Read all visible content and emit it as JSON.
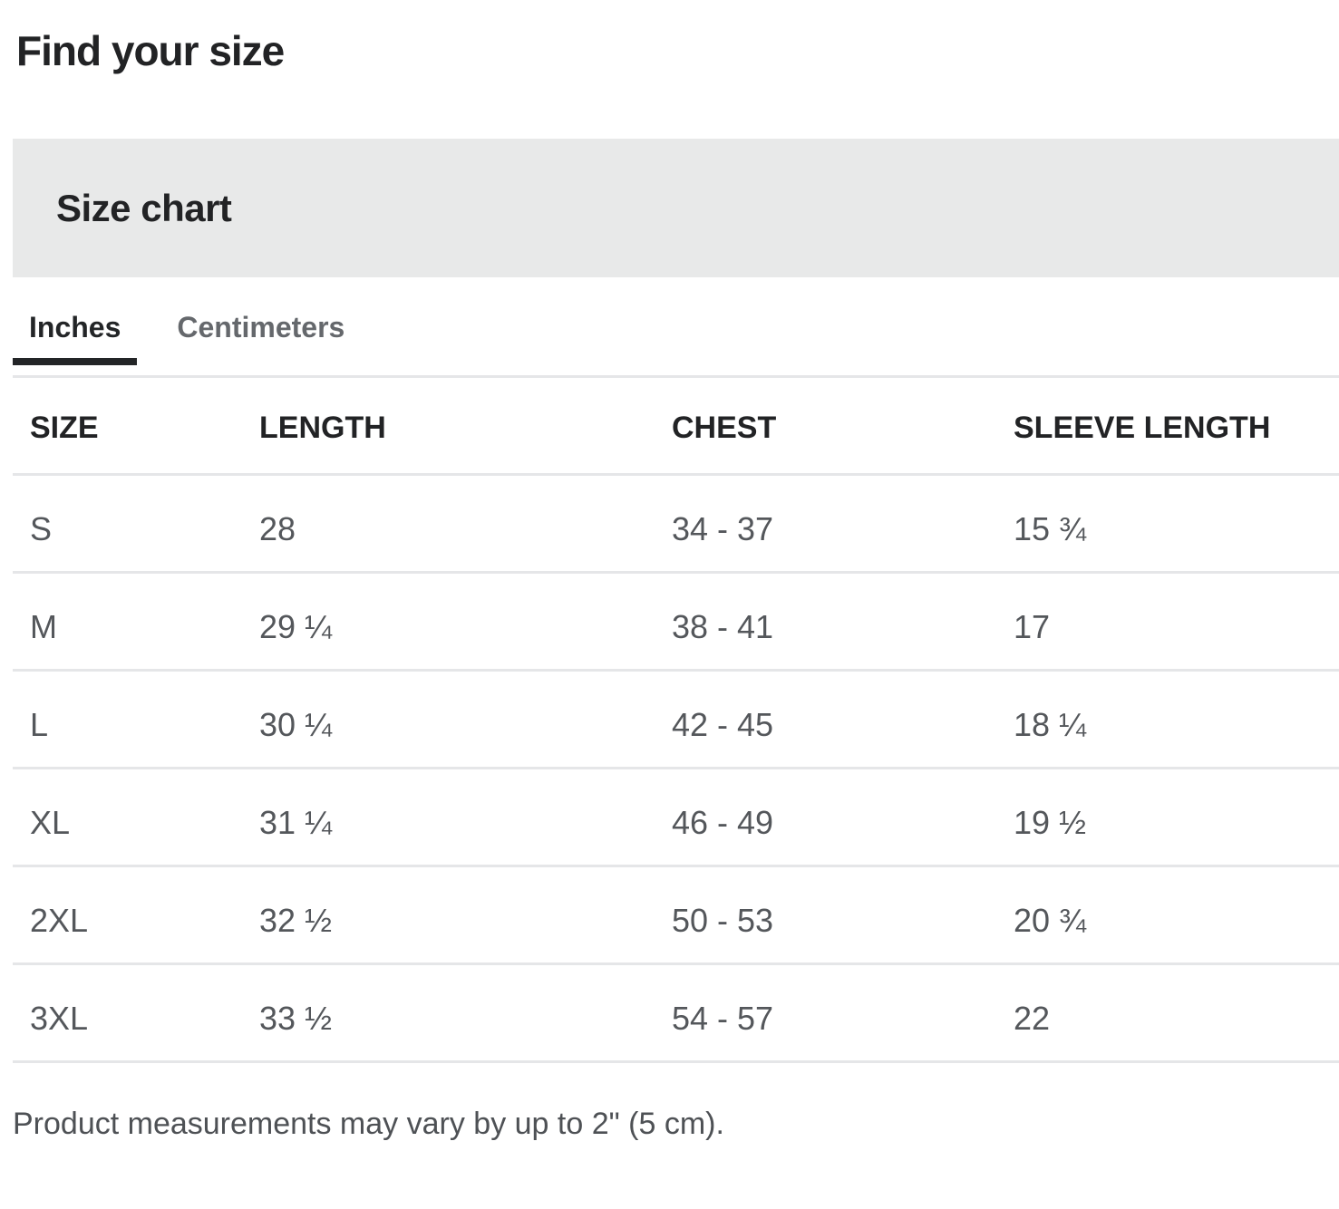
{
  "page": {
    "title": "Find your size",
    "section_title": "Size chart",
    "note": "Product measurements may vary by up to 2\" (5 cm)."
  },
  "tabs": [
    {
      "label": "Inches",
      "active": true
    },
    {
      "label": "Centimeters",
      "active": false
    }
  ],
  "table": {
    "columns": [
      "SIZE",
      "LENGTH",
      "CHEST",
      "SLEEVE LENGTH"
    ],
    "rows": [
      [
        "S",
        "28",
        "34 - 37",
        "15 ¾"
      ],
      [
        "M",
        "29 ¼",
        "38 - 41",
        "17"
      ],
      [
        "L",
        "30 ¼",
        "42 - 45",
        "18 ¼"
      ],
      [
        "XL",
        "31 ¼",
        "46 - 49",
        "19 ½"
      ],
      [
        "2XL",
        "32 ½",
        "50 - 53",
        "20 ¾"
      ],
      [
        "3XL",
        "33 ½",
        "54 - 57",
        "22"
      ]
    ]
  },
  "colors": {
    "banner_background": "#e8e9e9",
    "heading_text": "#222325",
    "cell_text": "#54575b",
    "divider": "#e5e6e8",
    "active_tab_underline": "#232527",
    "inactive_tab_text": "#65686c"
  }
}
